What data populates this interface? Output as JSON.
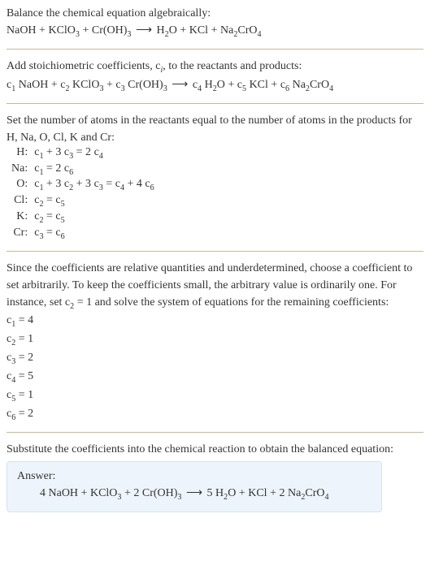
{
  "text_color": "#333333",
  "rule_color": "#c8b89a",
  "answer_bg": "#edf4fb",
  "answer_border": "#d4e3f0",
  "font_family": "Georgia, Times New Roman, serif",
  "base_fontsize": 14,
  "intro1": "Balance the chemical equation algebraically:",
  "species": {
    "NaOH": "NaOH",
    "KClO3": "KClO",
    "CrOH3": "Cr(OH)",
    "H2O": "H",
    "KCl": "KCl",
    "Na2CrO4": "Na",
    "O": "O",
    "CrO4_tail": "CrO"
  },
  "arrow": "⟶",
  "stoich_line": "Add stoichiometric coefficients, ",
  "stoich_c": "c",
  "stoich_i": "i",
  "stoich_tail": ", to the reactants and products:",
  "atoms_line1": "Set the number of atoms in the reactants equal to the number of atoms in the products for H, Na, O, Cl, K and Cr:",
  "elements": [
    "H:",
    "Na:",
    "O:",
    "Cl:",
    "K:",
    "Cr:"
  ],
  "eq_parts": {
    "H": {
      "lhs_a": "c",
      "lhs": " + 3",
      "rhs": " = 2"
    },
    "Na": {
      "lhs": " = 2"
    },
    "O": {
      "mid1": " + 3",
      "mid2": " + 3",
      "eq": " = ",
      "plus4": " + 4"
    },
    "Cl": {
      "eq": " = "
    },
    "K": {
      "eq": " = "
    },
    "Cr": {
      "eq": " = "
    }
  },
  "coeff_vals": {
    "c1": "1",
    "c2": "2",
    "c3": "3",
    "c4": "4",
    "c5": "5",
    "c6": "6"
  },
  "c_letter": "c",
  "since_para": "Since the coefficients are relative quantities and underdetermined, choose a coefficient to set arbitrarily. To keep the coefficients small, the arbitrary value is ordinarily one. For instance, set ",
  "since_tail": " = 1 and solve the system of equations for the remaining coefficients:",
  "solutions": [
    {
      "sub": "1",
      "val": " = 4"
    },
    {
      "sub": "2",
      "val": " = 1"
    },
    {
      "sub": "3",
      "val": " = 2"
    },
    {
      "sub": "4",
      "val": " = 5"
    },
    {
      "sub": "5",
      "val": " = 1"
    },
    {
      "sub": "6",
      "val": " = 2"
    }
  ],
  "subst_line": "Substitute the coefficients into the chemical reaction to obtain the balanced equation:",
  "answer_title": "Answer:",
  "answer_coeffs": {
    "a": "4 ",
    "b": "2 ",
    "c": "5 ",
    "d": "2 "
  },
  "plus": " + ",
  "sub3": "3",
  "sub2": "2",
  "sub4": "4"
}
